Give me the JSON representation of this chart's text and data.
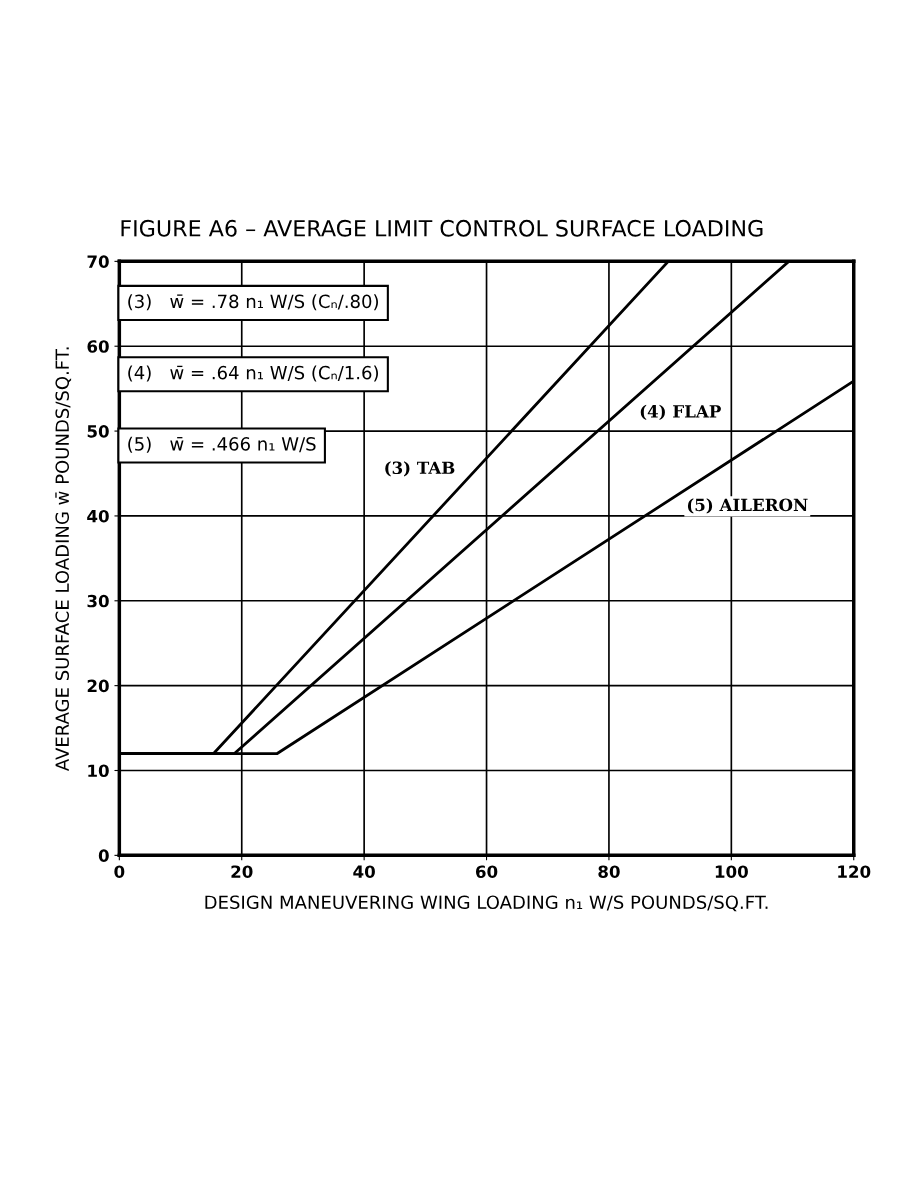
{
  "chart_data": {
    "type": "line",
    "title": "FIGURE A6 – AVERAGE LIMIT CONTROL SURFACE LOADING",
    "xlabel": "DESIGN MANEUVERING WING LOADING n₁ W/S POUNDS/SQ.FT.",
    "ylabel": "AVERAGE SURFACE LOADING w̄ POUNDS/SQ.FT.",
    "series": [
      {
        "name": "(3) TAB",
        "color": "#000000",
        "x": [
          0,
          15.4,
          89.7
        ],
        "values": [
          12,
          12,
          70
        ]
      },
      {
        "name": "(4) FLAP",
        "color": "#000000",
        "x": [
          0,
          18.8,
          109.4
        ],
        "values": [
          12,
          12,
          70
        ]
      },
      {
        "name": "(5) AILERON",
        "color": "#000000",
        "x": [
          0,
          25.8,
          120
        ],
        "values": [
          12,
          12,
          55.9
        ]
      }
    ],
    "annotations": [
      "(3)   w̄ = .78 n₁ W/S (Cₙ/.80)",
      "(4)   w̄ = .64 n₁ W/S (Cₙ/1.6)",
      "(5)   w̄ = .466 n₁ W/S"
    ],
    "xlim": [
      0,
      120
    ],
    "ylim": [
      0,
      70
    ],
    "xticks": [
      0,
      20,
      40,
      60,
      80,
      100,
      120
    ],
    "yticks": [
      0,
      10,
      20,
      30,
      40,
      50,
      60,
      70
    ],
    "grid": true,
    "legend": false,
    "marker": "none",
    "line_style": "solid"
  }
}
